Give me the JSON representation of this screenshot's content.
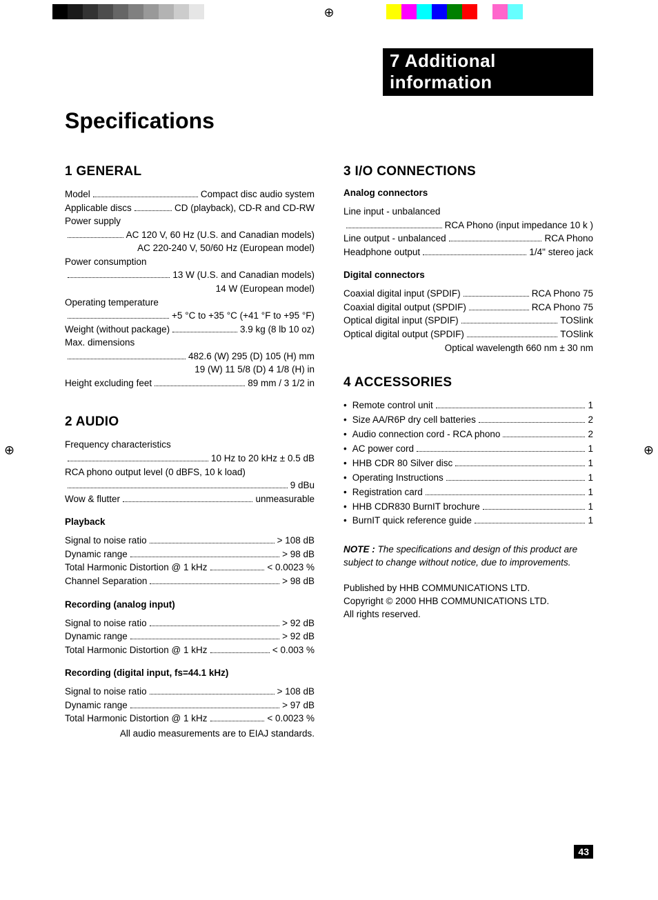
{
  "printermarks": {
    "grayscale": [
      "#000000",
      "#1a1a1a",
      "#333333",
      "#4d4d4d",
      "#666666",
      "#808080",
      "#999999",
      "#b3b3b3",
      "#cccccc",
      "#e6e6e6",
      "#ffffff"
    ],
    "colors": [
      "#ffff00",
      "#ff00ff",
      "#00ffff",
      "#0000ff",
      "#008000",
      "#ff0000",
      "#ffffff",
      "#ff66cc",
      "#66ffff"
    ]
  },
  "header": "7 Additional information",
  "title": "Specifications",
  "page_number": "43",
  "general": {
    "heading": "1 GENERAL",
    "rows": [
      {
        "label": "Model",
        "value": "Compact disc audio system"
      },
      {
        "label": "Applicable discs",
        "value": "CD (playback), CD-R and CD-RW"
      },
      {
        "label": "Power supply",
        "value": ""
      },
      {
        "label": "",
        "value": "AC 120 V, 60 Hz (U.S. and Canadian models)"
      },
      {
        "cont": "AC 220-240 V, 50/60 Hz (European model)"
      },
      {
        "label": "Power consumption",
        "value": ""
      },
      {
        "label": "",
        "value": "13 W (U.S. and Canadian models)"
      },
      {
        "cont": "14 W (European model)"
      },
      {
        "label": "Operating temperature",
        "value": ""
      },
      {
        "label": "",
        "value": "+5 °C to +35 °C (+41 °F to +95 °F)"
      },
      {
        "label": "Weight (without package)",
        "value": "3.9 kg (8 lb 10 oz)"
      },
      {
        "label": "Max. dimensions",
        "value": ""
      },
      {
        "label": "",
        "value": "482.6 (W)   295 (D)   105 (H) mm"
      },
      {
        "cont": "19 (W)   11 5/8 (D)   4 1/8 (H) in"
      },
      {
        "label": "Height excluding feet",
        "value": "89 mm / 3 1/2 in"
      }
    ]
  },
  "audio": {
    "heading": "2 AUDIO",
    "top_rows": [
      {
        "label": "Frequency characteristics",
        "value": ""
      },
      {
        "label": "",
        "value": "10 Hz to 20 kHz ± 0.5 dB"
      },
      {
        "label": "RCA phono output level (0 dBFS, 10 k   load)",
        "value": ""
      },
      {
        "label": "",
        "value": "9 dBu"
      },
      {
        "label": "Wow & flutter",
        "value": "unmeasurable"
      }
    ],
    "playback_title": "Playback",
    "playback_rows": [
      {
        "label": "Signal to noise ratio",
        "value": "> 108 dB"
      },
      {
        "label": "Dynamic range",
        "value": "> 98 dB"
      },
      {
        "label": "Total Harmonic Distortion @ 1 kHz",
        "value": "< 0.0023 %"
      },
      {
        "label": "Channel Separation",
        "value": "> 98 dB"
      }
    ],
    "rec_analog_title": "Recording (analog input)",
    "rec_analog_rows": [
      {
        "label": "Signal to noise ratio",
        "value": "> 92 dB"
      },
      {
        "label": "Dynamic range",
        "value": "> 92 dB"
      },
      {
        "label": "Total Harmonic Distortion @ 1 kHz",
        "value": "< 0.003 %"
      }
    ],
    "rec_digital_title": "Recording (digital input, fs=44.1 kHz)",
    "rec_digital_rows": [
      {
        "label": "Signal to noise ratio",
        "value": "> 108 dB"
      },
      {
        "label": "Dynamic range",
        "value": "> 97 dB"
      },
      {
        "label": "Total Harmonic Distortion @ 1 kHz",
        "value": "< 0.0023 %"
      }
    ],
    "footnote": "All audio measurements are to EIAJ standards."
  },
  "io": {
    "heading": "3 I/O CONNECTIONS",
    "analog_title": "Analog connectors",
    "analog_rows": [
      {
        "label": "Line input - unbalanced",
        "value": ""
      },
      {
        "label": "",
        "value": "RCA Phono (input impedance 10 k  )"
      },
      {
        "label": "Line output - unbalanced",
        "value": "RCA Phono"
      },
      {
        "label": "Headphone output",
        "value": "1/4\" stereo jack"
      }
    ],
    "digital_title": "Digital connectors",
    "digital_rows": [
      {
        "label": "Coaxial digital input (SPDIF)",
        "value": "RCA Phono 75"
      },
      {
        "label": "Coaxial digital output (SPDIF)",
        "value": "RCA Phono 75"
      },
      {
        "label": "Optical digital input (SPDIF)",
        "value": "TOSlink"
      },
      {
        "label": "Optical digital output (SPDIF)",
        "value": "TOSlink"
      },
      {
        "cont": "Optical wavelength 660 nm ± 30 nm"
      }
    ]
  },
  "accessories": {
    "heading": "4 ACCESSORIES",
    "items": [
      {
        "label": "Remote control unit",
        "value": "1"
      },
      {
        "label": "Size AA/R6P dry cell batteries",
        "value": "2"
      },
      {
        "label": "Audio connection cord - RCA phono",
        "value": "2"
      },
      {
        "label": "AC power cord",
        "value": "1"
      },
      {
        "label": "HHB CDR 80 Silver disc",
        "value": "1"
      },
      {
        "label": "Operating Instructions",
        "value": "1"
      },
      {
        "label": "Registration card",
        "value": "1"
      },
      {
        "label": "HHB CDR830 BurnIT brochure",
        "value": "1"
      },
      {
        "label": "BurnIT quick reference guide",
        "value": "1"
      }
    ]
  },
  "note_label": "NOTE :",
  "note_text": " The specifications and design of this product are subject to change without notice, due to improvements.",
  "publisher": [
    "Published by HHB COMMUNICATIONS LTD.",
    "Copyright © 2000 HHB COMMUNICATIONS LTD.",
    "All rights reserved."
  ]
}
